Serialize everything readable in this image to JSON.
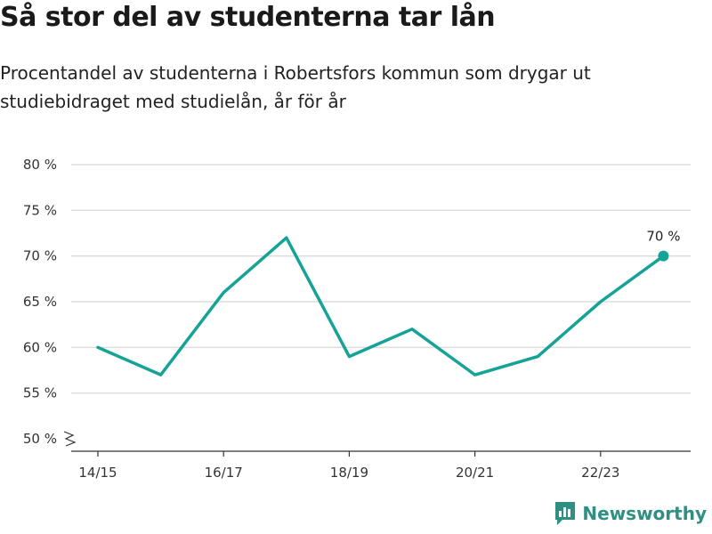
{
  "header": {
    "title": "Så stor del av studenterna tar lån",
    "subtitle": "Procentandel av studenterna i Robertsfors kommun som drygar ut studiebidraget med studielån, år för år"
  },
  "brand": {
    "name": "Newsworthy",
    "icon": "newsworthy-logo-icon",
    "color": "#2e8f82"
  },
  "chart_data": {
    "type": "line",
    "title": "Så stor del av studenterna tar lån",
    "subtitle": "Procentandel av studenterna i Robertsfors kommun som drygar ut studiebidraget med studielån, år för år",
    "x": [
      "14/15",
      "15/16",
      "16/17",
      "17/18",
      "18/19",
      "19/20",
      "20/21",
      "21/22",
      "22/23",
      "23/24"
    ],
    "series": [
      {
        "values": [
          60,
          57,
          66,
          72,
          59,
          62,
          57,
          59,
          65,
          70
        ],
        "color": "#14a396"
      }
    ],
    "x_tick_labels": [
      "14/15",
      "16/17",
      "18/19",
      "20/21",
      "22/23"
    ],
    "y_ticks": [
      50,
      55,
      60,
      65,
      70,
      75,
      80
    ],
    "y_tick_labels": [
      "50 %",
      "55 %",
      "60 %",
      "65 %",
      "70 %",
      "75 %",
      "80 %"
    ],
    "ylim": [
      50,
      80
    ],
    "y_axis_broken": true,
    "grid": true,
    "annotation": {
      "index": 9,
      "text": "70 %"
    },
    "line_color": "#14a396",
    "grid_color": "#dddddd"
  }
}
